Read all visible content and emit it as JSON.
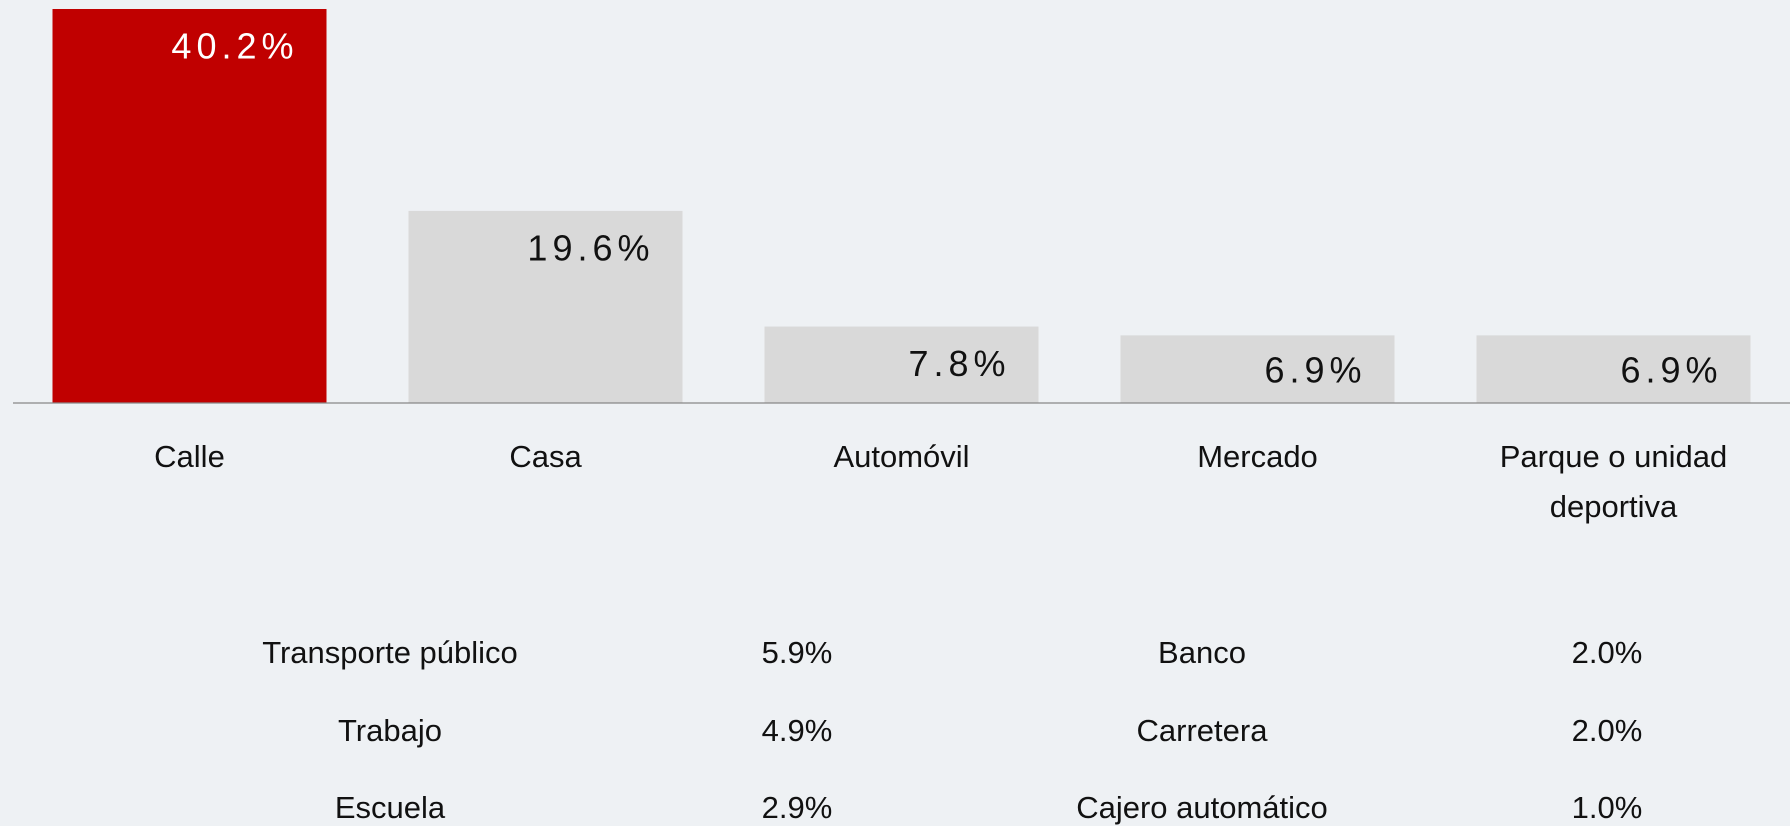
{
  "chart_data": {
    "type": "bar",
    "categories": [
      "Calle",
      "Casa",
      "Automóvil",
      "Mercado",
      "Parque o unidad deportiva"
    ],
    "values": [
      40.2,
      19.6,
      7.8,
      6.9,
      6.9
    ],
    "value_labels": [
      "40.2%",
      "19.6%",
      "7.8%",
      "6.9%",
      "6.9%"
    ],
    "colors": [
      "#c00000",
      "#d9d9d9",
      "#d9d9d9",
      "#d9d9d9",
      "#d9d9d9"
    ],
    "label_colors": [
      "#ffffff",
      "#111111",
      "#111111",
      "#111111",
      "#111111"
    ]
  },
  "table": {
    "rows": [
      [
        "Transporte público",
        "5.9%",
        "Banco",
        "2.0%"
      ],
      [
        "Trabajo",
        "4.9%",
        "Carretera",
        "2.0%"
      ],
      [
        "Escuela",
        "2.9%",
        "Cajero automático",
        "1.0%"
      ]
    ]
  }
}
